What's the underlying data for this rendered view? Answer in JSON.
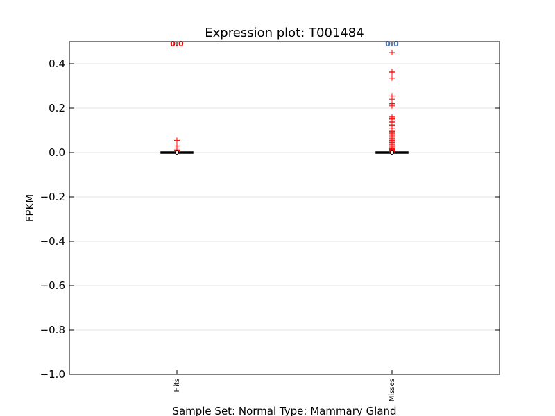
{
  "chart_data": {
    "type": "box",
    "title": "Expression plot: T001484",
    "xlabel": "Sample Set: Normal Type: Mammary Gland",
    "ylabel": "FPKM",
    "ylim": [
      -1.0,
      0.5
    ],
    "yticks": [
      -1.0,
      -0.8,
      -0.6,
      -0.4,
      -0.2,
      0.0,
      0.2,
      0.4
    ],
    "ytick_labels": [
      "−1.0",
      "−0.8",
      "−0.6",
      "−0.4",
      "−0.2",
      "0.0",
      "0.2",
      "0.4"
    ],
    "grid": "horizontal",
    "categories": [
      "Hits",
      "Misses"
    ],
    "series": [
      {
        "category": "Hits",
        "median": 0.0,
        "q1": 0.0,
        "q3": 0.0,
        "whisker_low": 0.0,
        "whisker_high": 0.0,
        "annotation": "0.0",
        "annotation_color": "#ff0000",
        "outliers": [
          0.055,
          0.03,
          0.02,
          0.012,
          0.008,
          0.004
        ]
      },
      {
        "category": "Misses",
        "median": 0.0,
        "q1": 0.0,
        "q3": 0.0,
        "whisker_low": 0.0,
        "whisker_high": 0.0,
        "annotation": "0.0",
        "annotation_color": "#4472c4",
        "outliers": [
          0.45,
          0.365,
          0.36,
          0.335,
          0.255,
          0.24,
          0.22,
          0.215,
          0.21,
          0.16,
          0.155,
          0.15,
          0.14,
          0.135,
          0.125,
          0.12,
          0.11,
          0.1,
          0.095,
          0.09,
          0.085,
          0.08,
          0.075,
          0.07,
          0.065,
          0.06,
          0.055,
          0.05,
          0.045,
          0.04,
          0.035,
          0.03,
          0.025,
          0.02,
          0.017,
          0.014,
          0.011,
          0.008,
          0.005,
          0.003
        ]
      }
    ],
    "colors": {
      "outlier": "#ff0000",
      "box": "#000000",
      "median": "#ff0000",
      "grid": "#e6e6e6"
    }
  }
}
